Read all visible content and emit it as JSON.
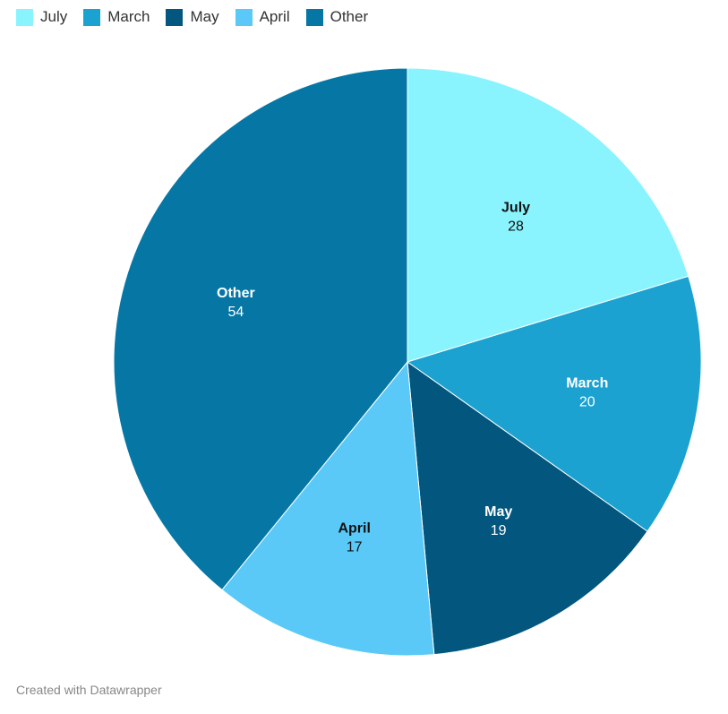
{
  "chart_data": {
    "type": "pie",
    "categories": [
      "July",
      "March",
      "May",
      "April",
      "Other"
    ],
    "values": [
      28,
      20,
      19,
      17,
      54
    ],
    "colors": [
      "#8af4fe",
      "#1ba2d0",
      "#03567e",
      "#5ac9f7",
      "#0677a5"
    ],
    "label_colors": [
      "#111111",
      "#ffffff",
      "#ffffff",
      "#111111",
      "#ffffff"
    ],
    "legend": [
      "July",
      "March",
      "May",
      "April",
      "Other"
    ],
    "legend_position": "top-left",
    "start_angle_deg": 0,
    "direction": "clockwise"
  },
  "footer": {
    "credit": "Created with Datawrapper"
  }
}
